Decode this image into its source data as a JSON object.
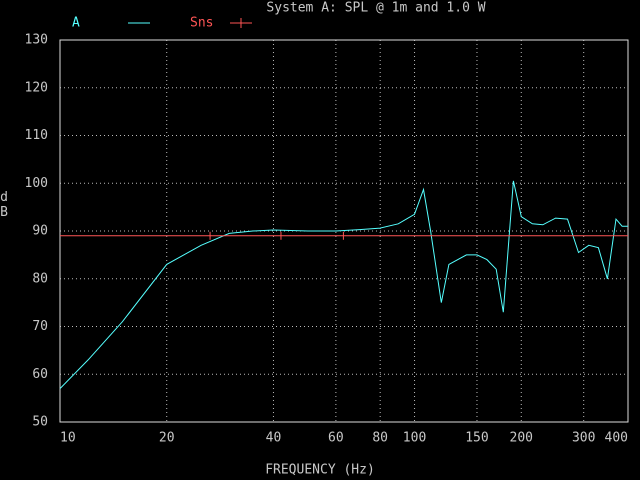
{
  "chart_data": {
    "type": "line",
    "title": "System A: SPL @ 1m and 1.0 W",
    "xlabel": "FREQUENCY (Hz)",
    "ylabel": "dB",
    "xscale": "log",
    "xlim": [
      10,
      400
    ],
    "ylim": [
      50,
      130
    ],
    "xticks": [
      10,
      20,
      40,
      60,
      80,
      100,
      150,
      200,
      300,
      400
    ],
    "yticks": [
      50,
      60,
      70,
      80,
      90,
      100,
      110,
      120,
      130
    ],
    "grid": true,
    "series": [
      {
        "name": "A",
        "color": "#55ffff",
        "x": [
          10,
          12,
          15,
          20,
          25,
          30,
          35,
          40,
          50,
          60,
          70,
          80,
          90,
          100,
          106,
          111,
          119,
          125,
          140,
          150,
          160,
          170,
          178,
          190,
          200,
          215,
          230,
          250,
          270,
          290,
          310,
          330,
          350,
          370,
          385,
          400
        ],
        "values": [
          57,
          63,
          71,
          83,
          87,
          89.5,
          90,
          90.2,
          90,
          90,
          90.3,
          90.6,
          91.5,
          93.5,
          98.7,
          90,
          75,
          83,
          85,
          85,
          84,
          82,
          73,
          100.5,
          93,
          91.5,
          91.3,
          92.7,
          92.5,
          85.5,
          87,
          86.5,
          80,
          92.5,
          91,
          91
        ]
      },
      {
        "name": "Sns",
        "color": "#ff5555",
        "x": [
          10,
          26.5,
          42,
          63,
          400
        ],
        "values": [
          89,
          89,
          89,
          89,
          89
        ]
      }
    ]
  }
}
